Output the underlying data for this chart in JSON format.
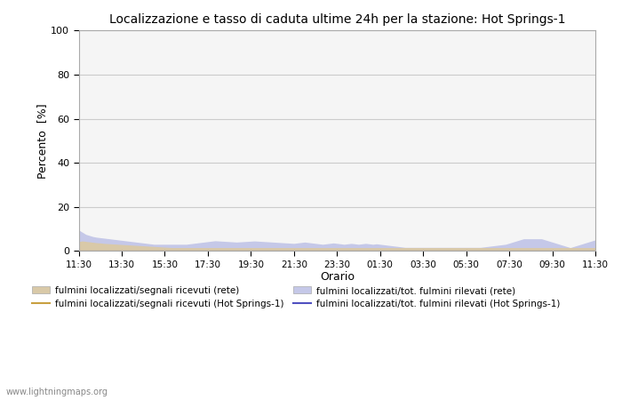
{
  "title": "Localizzazione e tasso di caduta ultime 24h per la stazione: Hot Springs-1",
  "xlabel": "Orario",
  "ylabel": "Percento  [%]",
  "ylim": [
    0,
    100
  ],
  "yticks": [
    0,
    20,
    40,
    60,
    80,
    100
  ],
  "x_labels": [
    "11:30",
    "13:30",
    "15:30",
    "17:30",
    "19:30",
    "21:30",
    "23:30",
    "01:30",
    "03:30",
    "05:30",
    "07:30",
    "09:30",
    "11:30"
  ],
  "background_color": "#ffffff",
  "plot_bg_color": "#f5f5f5",
  "grid_color": "#cccccc",
  "color_fill_rete": "#d9c9a8",
  "color_fill_rete_total": "#c5c8e8",
  "color_line_hs": "#c8a040",
  "color_line_hs_total": "#5050c0",
  "watermark": "www.lightningmaps.org",
  "legend": [
    {
      "label": "fulmini localizzati/segnali ricevuti (rete)",
      "type": "fill",
      "color": "#d9c9a8"
    },
    {
      "label": "fulmini localizzati/segnali ricevuti (Hot Springs-1)",
      "type": "line",
      "color": "#c8a040"
    },
    {
      "label": "fulmini localizzati/tot. fulmini rilevati (rete)",
      "type": "fill",
      "color": "#c5c8e8"
    },
    {
      "label": "fulmini localizzati/tot. fulmini rilevati (Hot Springs-1)",
      "type": "line",
      "color": "#5050c0"
    }
  ],
  "n_points": 145,
  "rete_fill": [
    4.2,
    4.5,
    4.3,
    4.1,
    3.9,
    3.7,
    3.6,
    3.4,
    3.3,
    3.2,
    3.1,
    3.0,
    2.9,
    2.8,
    2.7,
    2.6,
    2.5,
    2.4,
    2.3,
    2.2,
    2.1,
    2.0,
    1.9,
    1.8,
    1.7,
    1.6,
    1.5,
    1.5,
    1.5,
    1.5,
    1.5,
    1.5,
    1.5,
    1.5,
    1.5,
    1.5,
    1.5,
    1.5,
    1.5,
    1.5,
    1.5,
    1.5,
    1.5,
    1.5,
    1.5,
    1.5,
    1.5,
    1.5,
    1.5,
    1.5,
    1.5,
    1.5,
    1.5,
    1.5,
    1.5,
    1.5,
    1.5,
    1.5,
    1.5,
    1.5,
    1.5,
    1.5,
    1.5,
    1.5,
    1.5,
    1.5,
    1.5,
    1.5,
    1.5,
    1.5,
    1.5,
    1.5,
    1.5,
    1.5,
    1.5,
    1.5,
    1.5,
    1.5,
    1.5,
    1.5,
    1.5,
    1.5,
    1.5,
    1.5,
    1.5,
    1.5,
    1.5,
    1.5,
    1.5,
    1.5,
    1.5,
    1.5,
    1.5,
    1.5,
    1.5,
    1.5,
    1.5,
    1.5,
    1.5,
    1.5,
    1.5,
    1.5,
    1.5,
    1.5,
    1.5,
    1.5,
    1.5,
    1.5,
    1.5,
    1.5,
    1.5,
    1.5,
    1.5,
    1.5,
    1.5,
    1.5,
    1.5,
    1.5,
    1.5,
    1.5,
    1.5,
    1.5,
    1.5,
    1.5,
    1.5,
    1.5,
    1.5,
    1.5,
    1.5,
    1.5,
    1.5,
    1.5,
    1.5,
    1.5,
    1.5,
    1.5,
    1.5,
    1.5,
    1.5,
    1.5,
    1.5,
    1.5,
    1.5,
    1.5,
    1.5
  ],
  "rete_total_fill": [
    9.5,
    8.5,
    7.5,
    7.0,
    6.5,
    6.2,
    6.0,
    5.8,
    5.6,
    5.4,
    5.2,
    5.0,
    4.8,
    4.6,
    4.4,
    4.2,
    4.0,
    3.8,
    3.6,
    3.4,
    3.2,
    3.0,
    3.0,
    3.0,
    3.0,
    3.0,
    3.0,
    3.0,
    3.0,
    3.0,
    3.0,
    3.2,
    3.4,
    3.6,
    3.8,
    4.0,
    4.2,
    4.4,
    4.6,
    4.5,
    4.4,
    4.3,
    4.2,
    4.1,
    4.0,
    4.1,
    4.2,
    4.3,
    4.4,
    4.5,
    4.4,
    4.3,
    4.2,
    4.1,
    4.0,
    3.9,
    3.8,
    3.7,
    3.6,
    3.5,
    3.4,
    3.6,
    3.8,
    4.0,
    3.8,
    3.6,
    3.4,
    3.2,
    3.0,
    3.2,
    3.4,
    3.6,
    3.4,
    3.2,
    3.0,
    3.2,
    3.4,
    3.2,
    3.0,
    3.2,
    3.4,
    3.2,
    3.0,
    3.2,
    3.0,
    2.8,
    2.6,
    2.4,
    2.2,
    2.0,
    1.8,
    1.6,
    1.6,
    1.6,
    1.6,
    1.6,
    1.6,
    1.6,
    1.6,
    1.6,
    1.6,
    1.6,
    1.6,
    1.6,
    1.6,
    1.6,
    1.6,
    1.6,
    1.6,
    1.6,
    1.6,
    1.6,
    1.6,
    1.8,
    2.0,
    2.2,
    2.4,
    2.6,
    2.8,
    3.0,
    3.5,
    4.0,
    4.5,
    5.0,
    5.5,
    5.5,
    5.5,
    5.5,
    5.5,
    5.5,
    5.0,
    4.5,
    4.0,
    3.5,
    3.0,
    2.5,
    2.0,
    1.5,
    2.0,
    2.5,
    3.0,
    3.5,
    4.0,
    4.5,
    5.0
  ],
  "hs_line": [
    0.3,
    0.3,
    0.3,
    0.3,
    0.3,
    0.3,
    0.3,
    0.3,
    0.3,
    0.3,
    0.3,
    0.3,
    0.3,
    0.3,
    0.3,
    0.3,
    0.3,
    0.3,
    0.3,
    0.3,
    0.3,
    0.3,
    0.3,
    0.3,
    0.3,
    0.3,
    0.3,
    0.3,
    0.3,
    0.3,
    0.3,
    0.3,
    0.3,
    0.3,
    0.3,
    0.3,
    0.3,
    0.3,
    0.3,
    0.3,
    0.3,
    0.3,
    0.3,
    0.3,
    0.3,
    0.3,
    0.3,
    0.3,
    0.3,
    0.3,
    0.3,
    0.3,
    0.3,
    0.3,
    0.3,
    0.3,
    0.3,
    0.3,
    0.3,
    0.3,
    0.3,
    0.3,
    0.3,
    0.3,
    0.3,
    0.3,
    0.3,
    0.3,
    0.3,
    0.3,
    0.3,
    0.3,
    0.3,
    0.3,
    0.3,
    0.3,
    0.3,
    0.3,
    0.3,
    0.3,
    0.3,
    0.3,
    0.3,
    0.3,
    0.3,
    0.3,
    0.3,
    0.3,
    0.3,
    0.3,
    0.3,
    0.3,
    0.3,
    0.3,
    0.3,
    0.3,
    0.3,
    0.3,
    0.3,
    0.3,
    0.3,
    0.3,
    0.3,
    0.3,
    0.3,
    0.3,
    0.3,
    0.3,
    0.3,
    0.3,
    0.3,
    0.3,
    0.3,
    0.3,
    0.3,
    0.3,
    0.3,
    0.3,
    0.3,
    0.3,
    0.3,
    0.3,
    0.3,
    0.3,
    0.3,
    0.3,
    0.3,
    0.3,
    0.3,
    0.3,
    0.3,
    0.3,
    0.3,
    0.3,
    0.3,
    0.3,
    0.3,
    0.3,
    0.3,
    0.3,
    0.3,
    0.3,
    0.3,
    0.3,
    0.3
  ],
  "hs_total_line": [
    0.2,
    0.2,
    0.2,
    0.2,
    0.2,
    0.2,
    0.2,
    0.2,
    0.2,
    0.2,
    0.2,
    0.2,
    0.2,
    0.2,
    0.2,
    0.2,
    0.2,
    0.2,
    0.2,
    0.2,
    0.2,
    0.2,
    0.2,
    0.2,
    0.2,
    0.2,
    0.2,
    0.2,
    0.2,
    0.2,
    0.2,
    0.2,
    0.2,
    0.2,
    0.2,
    0.2,
    0.2,
    0.2,
    0.2,
    0.2,
    0.2,
    0.2,
    0.2,
    0.2,
    0.2,
    0.2,
    0.2,
    0.2,
    0.2,
    0.2,
    0.2,
    0.2,
    0.2,
    0.2,
    0.2,
    0.2,
    0.2,
    0.2,
    0.2,
    0.2,
    0.2,
    0.2,
    0.2,
    0.2,
    0.2,
    0.2,
    0.2,
    0.2,
    0.2,
    0.2,
    0.2,
    0.2,
    0.2,
    0.2,
    0.2,
    0.2,
    0.2,
    0.2,
    0.2,
    0.2,
    0.2,
    0.2,
    0.2,
    0.2,
    0.2,
    0.2,
    0.2,
    0.2,
    0.2,
    0.2,
    0.2,
    0.2,
    0.2,
    0.2,
    0.2,
    0.2,
    0.2,
    0.2,
    0.2,
    0.2,
    0.2,
    0.2,
    0.2,
    0.2,
    0.2,
    0.2,
    0.2,
    0.2,
    0.2,
    0.2,
    0.2,
    0.2,
    0.2,
    0.2,
    0.2,
    0.2,
    0.2,
    0.2,
    0.2,
    0.2,
    0.2,
    0.2,
    0.2,
    0.2,
    0.2,
    0.2,
    0.2,
    0.2,
    0.2,
    0.2,
    0.2,
    0.2,
    0.2,
    0.2,
    0.2,
    0.2,
    0.2,
    0.2,
    0.2,
    0.2,
    0.2,
    0.2,
    0.2,
    0.2,
    0.2
  ]
}
